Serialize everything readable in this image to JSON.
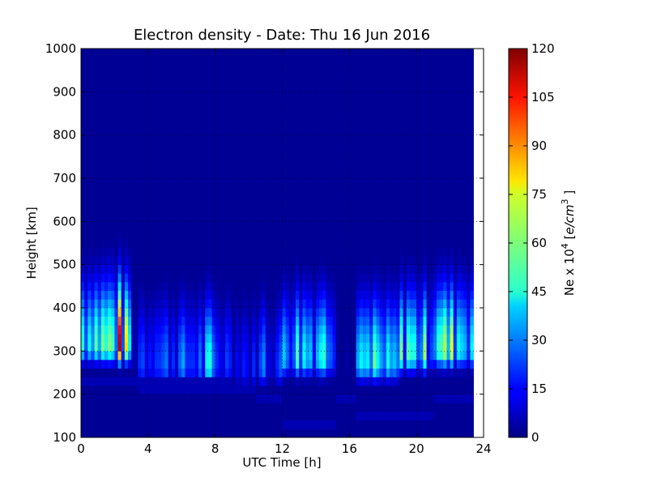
{
  "chart_data": {
    "type": "heatmap",
    "title": "Electron density - Date: Thu 16 Jun 2016",
    "xlabel": "UTC Time [h]",
    "ylabel": "Height [km]",
    "xlim": [
      0,
      24
    ],
    "ylim": [
      100,
      1000
    ],
    "xticks": [
      "0",
      "4",
      "8",
      "12",
      "16",
      "20",
      "24"
    ],
    "yticks": [
      "100",
      "200",
      "300",
      "400",
      "500",
      "600",
      "700",
      "800",
      "900",
      "1000"
    ],
    "grid": true,
    "colormap": "jet",
    "colorbar": {
      "label_prefix": "Ne x 10",
      "label_exp": "4",
      "label_unit_open": "[",
      "label_unit": "e/cm",
      "label_unit_exp": "3",
      "label_unit_close": "]",
      "ticks": [
        "0",
        "15",
        "30",
        "45",
        "60",
        "75",
        "90",
        "105",
        "120"
      ],
      "range": [
        0,
        120
      ]
    },
    "time_step_h": 0.2,
    "heights_km": [
      100,
      120,
      140,
      160,
      180,
      200,
      220,
      240,
      260,
      280,
      300,
      320,
      340,
      360,
      380,
      400,
      420,
      440,
      460,
      480,
      500,
      520,
      540,
      560,
      580,
      600,
      620,
      640,
      660,
      680,
      700,
      720,
      740,
      760,
      780,
      800,
      820,
      840,
      860,
      880,
      900,
      920,
      940,
      960,
      980
    ],
    "profiles": [
      {
        "t_start": 0.0,
        "t_end": 3.0,
        "peak_km": 300,
        "peak_ne": 68,
        "bottom_km": 235
      },
      {
        "t_start": 3.0,
        "t_end": 3.4,
        "peak_km": 270,
        "peak_ne": 8,
        "bottom_km": 240
      },
      {
        "t_start": 3.4,
        "t_end": 8.0,
        "peak_km": 255,
        "peak_ne": 30,
        "bottom_km": 225
      },
      {
        "t_start": 8.0,
        "t_end": 9.0,
        "peak_km": 255,
        "peak_ne": 25,
        "bottom_km": 225
      },
      {
        "t_start": 9.0,
        "t_end": 10.4,
        "peak_km": 245,
        "peak_ne": 18,
        "bottom_km": 220
      },
      {
        "t_start": 10.4,
        "t_end": 12.0,
        "peak_km": 250,
        "peak_ne": 25,
        "bottom_km": 200
      },
      {
        "t_start": 12.0,
        "t_end": 15.2,
        "peak_km": 270,
        "peak_ne": 55,
        "bottom_km": 140
      },
      {
        "t_start": 15.2,
        "t_end": 16.4,
        "peak_km": 250,
        "peak_ne": 4,
        "bottom_km": 200
      },
      {
        "t_start": 16.4,
        "t_end": 19.0,
        "peak_km": 260,
        "peak_ne": 40,
        "bottom_km": 160
      },
      {
        "t_start": 19.0,
        "t_end": 21.0,
        "peak_km": 280,
        "peak_ne": 55,
        "bottom_km": 160
      },
      {
        "t_start": 21.0,
        "t_end": 23.4,
        "peak_km": 290,
        "peak_ne": 65,
        "bottom_km": 200
      }
    ],
    "data_end_h": 23.4
  }
}
